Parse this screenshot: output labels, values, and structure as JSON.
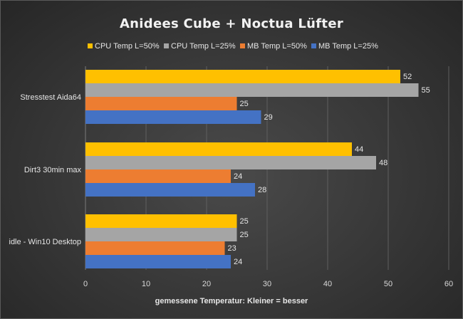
{
  "chart_data": {
    "type": "bar",
    "orientation": "horizontal",
    "title": "Anidees Cube + Noctua Lüfter",
    "xlabel": "gemessene Temperatur: Kleiner = besser",
    "ylabel": "",
    "xlim": [
      0,
      60
    ],
    "ticks": [
      "0",
      "10",
      "20",
      "30",
      "40",
      "50",
      "60"
    ],
    "grid": true,
    "legend_position": "top",
    "categories": [
      "Stresstest Aida64",
      "Dirt3 30min max",
      "idle - Win10 Desktop"
    ],
    "series": [
      {
        "name": "CPU Temp L=50%",
        "color": "#ffc000",
        "values": [
          52,
          44,
          25
        ]
      },
      {
        "name": "CPU Temp L=25%",
        "color": "#a5a5a5",
        "values": [
          55,
          48,
          25
        ]
      },
      {
        "name": "MB Temp L=50%",
        "color": "#ed7d31",
        "values": [
          25,
          24,
          23
        ]
      },
      {
        "name": "MB Temp L=25%",
        "color": "#4472c4",
        "values": [
          29,
          28,
          24
        ]
      }
    ]
  }
}
